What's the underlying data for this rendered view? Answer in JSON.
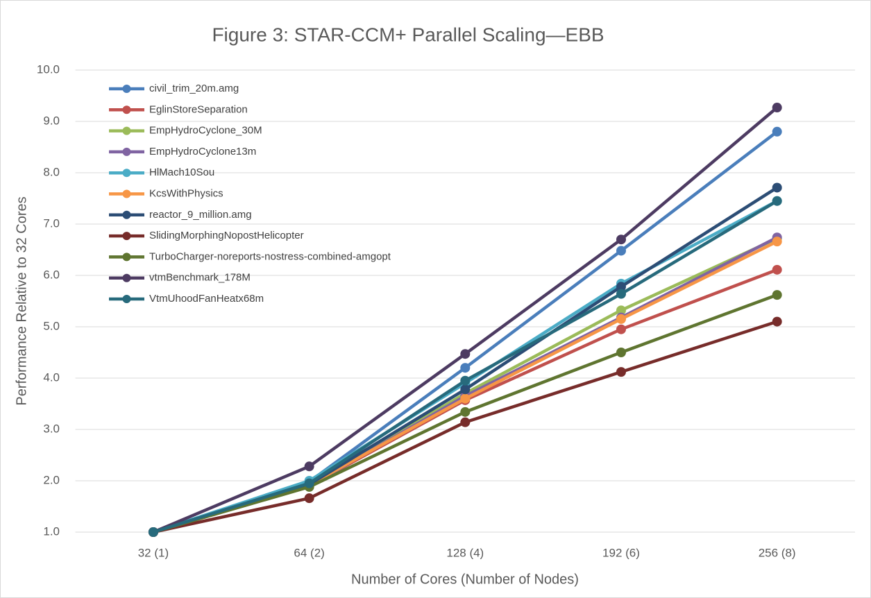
{
  "chart_data": {
    "type": "line",
    "title": "Figure 3: STAR-CCM+ Parallel Scaling—EBB",
    "x_label": "Number of Cores (Number of Nodes)",
    "y_label": "Performance Relative to 32 Cores",
    "categories": [
      "32 (1)",
      "64 (2)",
      "128 (4)",
      "192 (6)",
      "256 (8)"
    ],
    "ylim": [
      1,
      10
    ],
    "yticks": [
      {
        "value": 1,
        "label": "1.0"
      },
      {
        "value": 2,
        "label": "2.0"
      },
      {
        "value": 3,
        "label": "3.0"
      },
      {
        "value": 4,
        "label": "4.0"
      },
      {
        "value": 5,
        "label": "5.0"
      },
      {
        "value": 6,
        "label": "6.0"
      },
      {
        "value": 7,
        "label": "7.0"
      },
      {
        "value": 8,
        "label": "8.0"
      },
      {
        "value": 9,
        "label": "9.0"
      },
      {
        "value": 10,
        "label": "10.0"
      }
    ],
    "grid": true,
    "legend": "upper left",
    "series": [
      {
        "name": "civil_trim_20m.amg",
        "color": "#4a7ebb",
        "values": [
          1.0,
          1.98,
          4.2,
          6.48,
          8.8
        ]
      },
      {
        "name": "EglinStoreSeparation",
        "color": "#c0504d",
        "values": [
          1.0,
          1.9,
          3.57,
          4.95,
          6.11
        ]
      },
      {
        "name": "EmpHydroCyclone_30M",
        "color": "#9bbb59",
        "values": [
          1.0,
          1.9,
          3.7,
          5.32,
          6.72
        ]
      },
      {
        "name": "EmpHydroCyclone13m",
        "color": "#8064a2",
        "values": [
          1.0,
          1.9,
          3.65,
          5.18,
          6.74
        ]
      },
      {
        "name": "HlMach10Sou",
        "color": "#4bacc6",
        "values": [
          1.0,
          2.0,
          3.9,
          5.84,
          7.45
        ]
      },
      {
        "name": "KcsWithPhysics",
        "color": "#f79646",
        "values": [
          1.0,
          1.92,
          3.6,
          5.15,
          6.66
        ]
      },
      {
        "name": "reactor_9_million.amg",
        "color": "#2c4d75",
        "values": [
          1.0,
          1.93,
          3.78,
          5.78,
          7.71
        ]
      },
      {
        "name": "SlidingMorphingNopostHelicopter",
        "color": "#772c2a",
        "values": [
          1.0,
          1.66,
          3.14,
          4.12,
          5.1
        ]
      },
      {
        "name": "TurboCharger-noreports-nostress-combined-amgopt",
        "color": "#5f7530",
        "values": [
          1.0,
          1.88,
          3.34,
          4.5,
          5.62
        ]
      },
      {
        "name": "vtmBenchmark_178M",
        "color": "#4d3b62",
        "values": [
          1.0,
          2.28,
          4.47,
          6.7,
          9.27
        ]
      },
      {
        "name": "VtmUhoodFanHeatx68m",
        "color": "#276a7c",
        "values": [
          1.0,
          1.95,
          3.95,
          5.64,
          7.45
        ]
      }
    ]
  }
}
